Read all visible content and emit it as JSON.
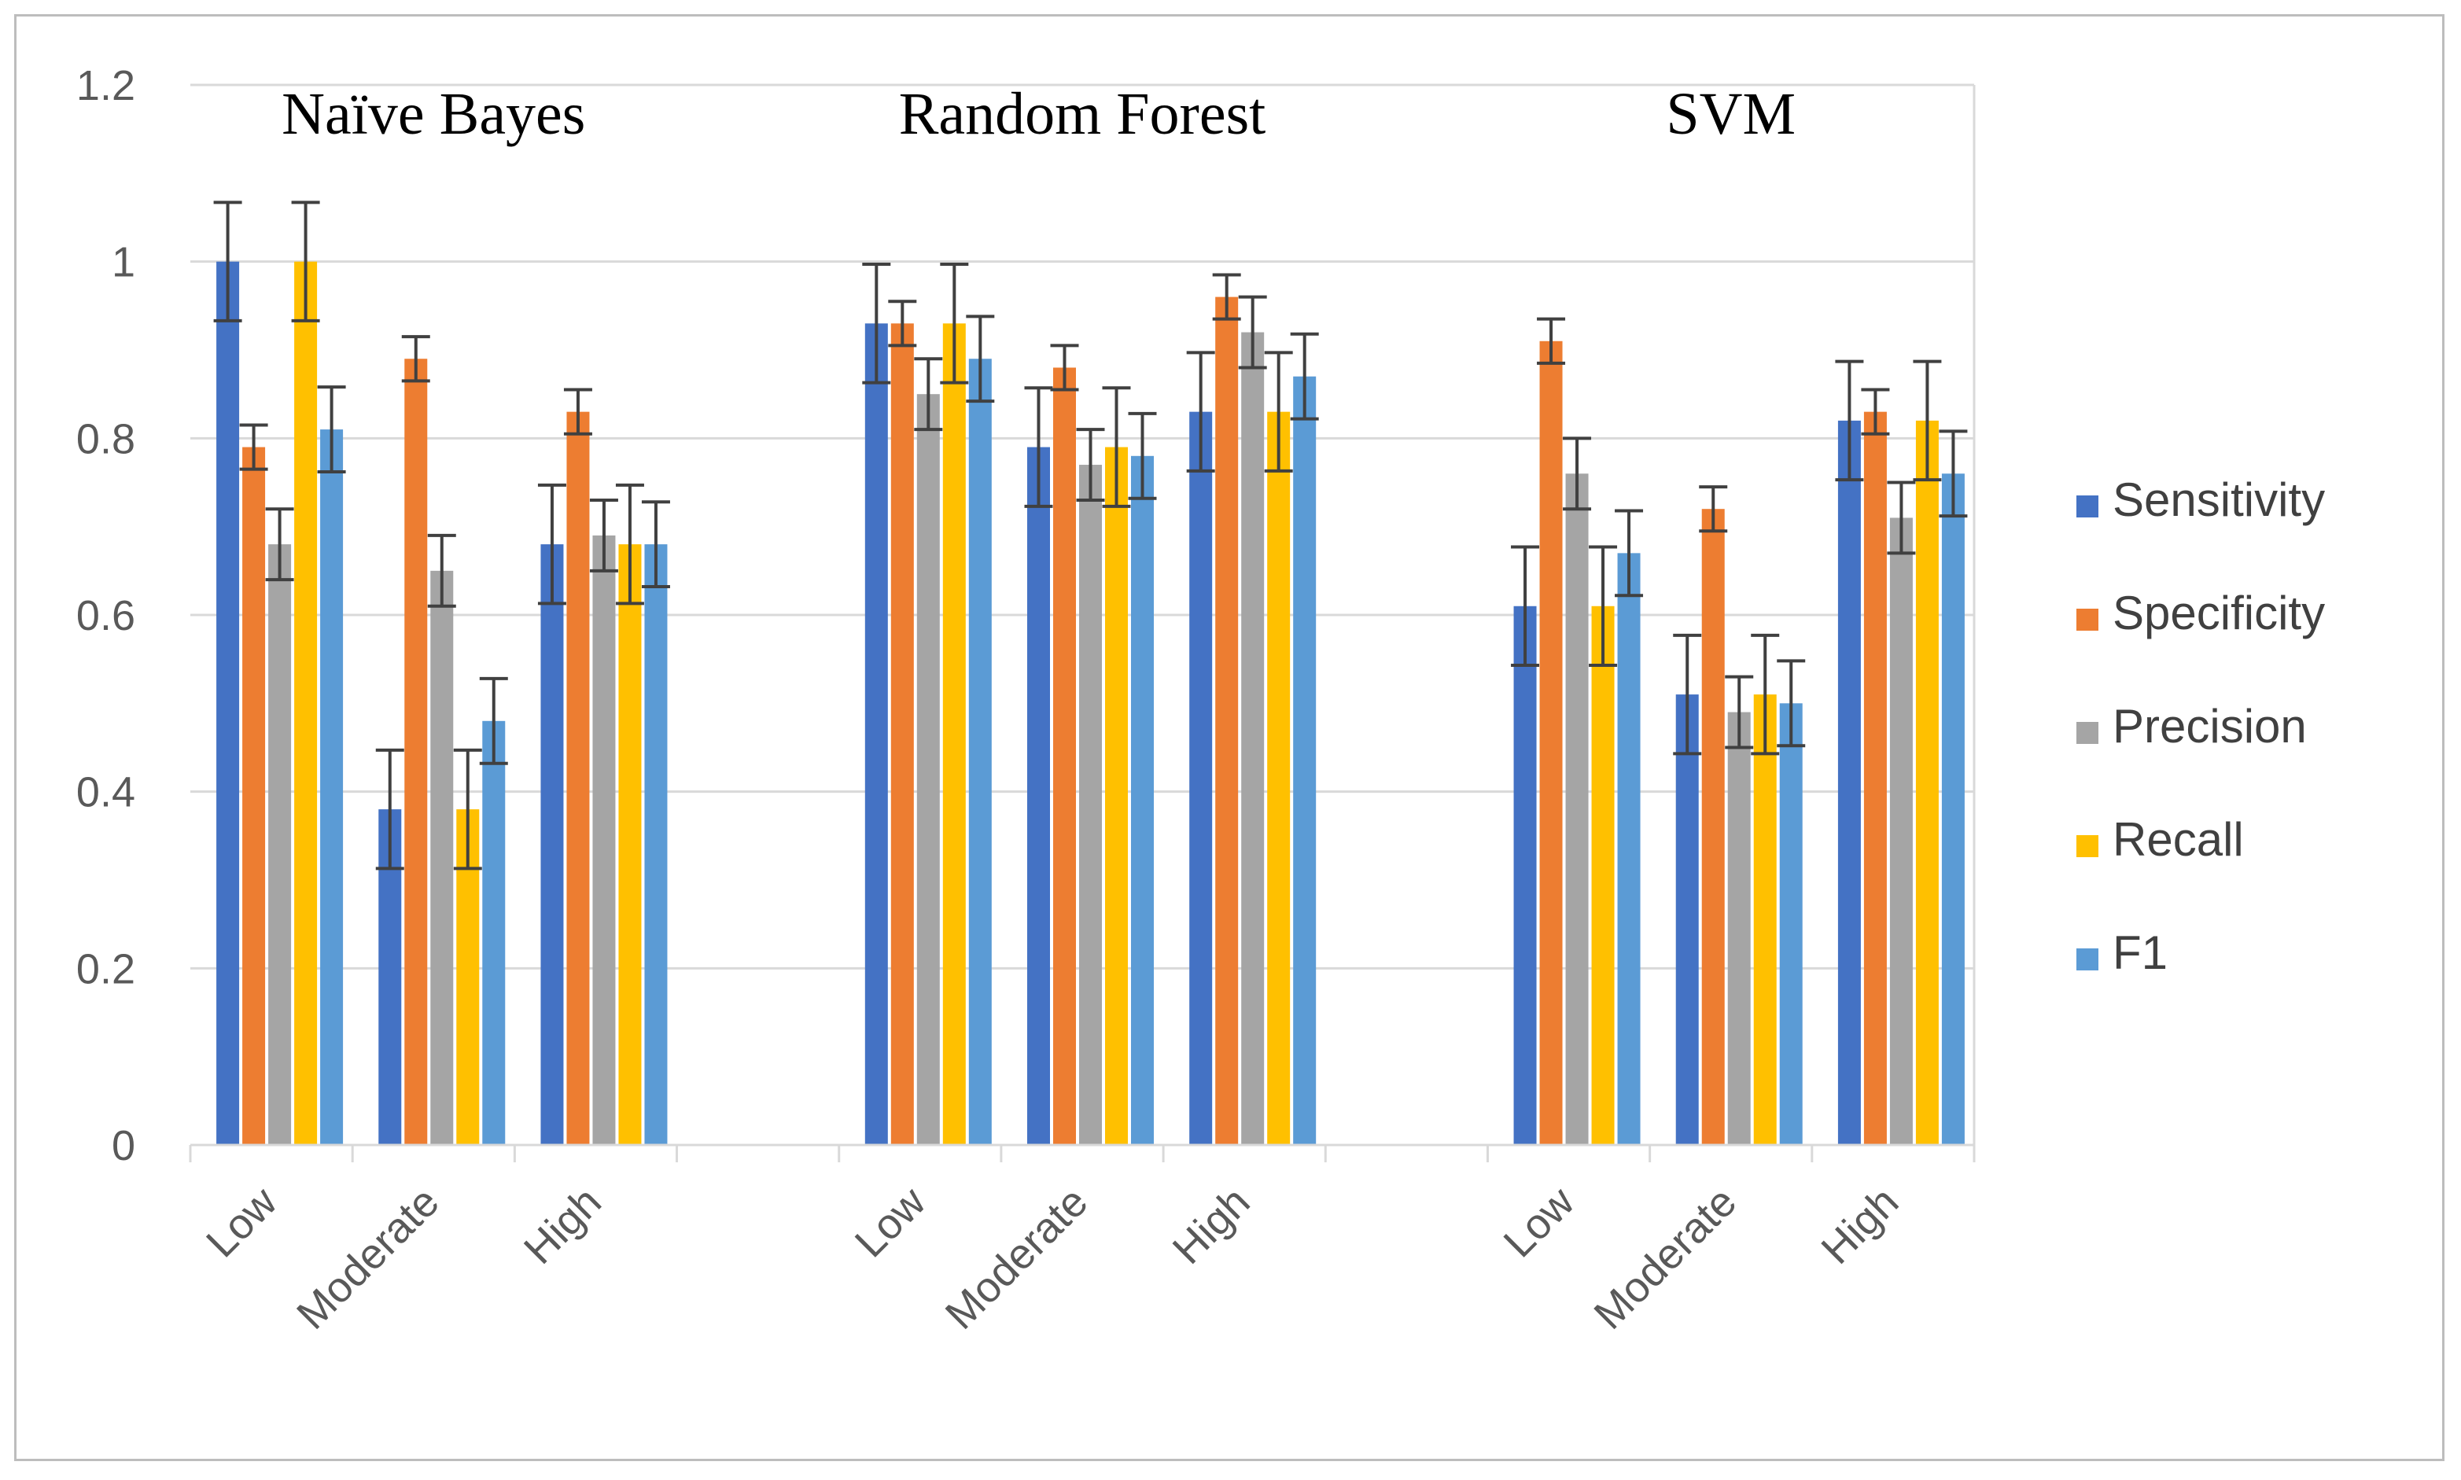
{
  "chart_data": {
    "type": "bar",
    "y_axis": {
      "ylim": [
        0,
        1.2
      ],
      "ticks": [
        0,
        0.2,
        0.4,
        0.6,
        0.8,
        1,
        1.2
      ],
      "tick_labels": [
        "0",
        "0.2",
        "0.4",
        "0.6",
        "0.8",
        "1",
        "1.2"
      ],
      "grid": true
    },
    "legend_position": "right",
    "series": [
      {
        "name": "Sensitivity",
        "color": "#4472C4"
      },
      {
        "name": "Specificity",
        "color": "#ED7D31"
      },
      {
        "name": "Precision",
        "color": "#A5A5A5"
      },
      {
        "name": "Recall",
        "color": "#FFC000"
      },
      {
        "name": "F1",
        "color": "#5B9BD5"
      }
    ],
    "groups": [
      {
        "title": "Naïve Bayes",
        "categories": [
          {
            "label": "Low",
            "values": [
              1.0,
              0.79,
              0.68,
              1.0,
              0.81
            ],
            "errors": [
              0.067,
              0.025,
              0.04,
              0.067,
              0.048
            ]
          },
          {
            "label": "Moderate",
            "values": [
              0.38,
              0.89,
              0.65,
              0.38,
              0.48
            ],
            "errors": [
              0.067,
              0.025,
              0.04,
              0.067,
              0.048
            ]
          },
          {
            "label": "High",
            "values": [
              0.68,
              0.83,
              0.69,
              0.68,
              0.68
            ],
            "errors": [
              0.067,
              0.025,
              0.04,
              0.067,
              0.048
            ]
          }
        ]
      },
      {
        "title": "Random Forest",
        "categories": [
          {
            "label": "Low",
            "values": [
              0.93,
              0.93,
              0.85,
              0.93,
              0.89
            ],
            "errors": [
              0.067,
              0.025,
              0.04,
              0.067,
              0.048
            ]
          },
          {
            "label": "Moderate",
            "values": [
              0.79,
              0.88,
              0.77,
              0.79,
              0.78
            ],
            "errors": [
              0.067,
              0.025,
              0.04,
              0.067,
              0.048
            ]
          },
          {
            "label": "High",
            "values": [
              0.83,
              0.96,
              0.92,
              0.83,
              0.87
            ],
            "errors": [
              0.067,
              0.025,
              0.04,
              0.067,
              0.048
            ]
          }
        ]
      },
      {
        "title": "SVM",
        "categories": [
          {
            "label": "Low",
            "values": [
              0.61,
              0.91,
              0.76,
              0.61,
              0.67
            ],
            "errors": [
              0.067,
              0.025,
              0.04,
              0.067,
              0.048
            ]
          },
          {
            "label": "Moderate",
            "values": [
              0.51,
              0.72,
              0.49,
              0.51,
              0.5
            ],
            "errors": [
              0.067,
              0.025,
              0.04,
              0.067,
              0.048
            ]
          },
          {
            "label": "High",
            "values": [
              0.82,
              0.83,
              0.71,
              0.82,
              0.76
            ],
            "errors": [
              0.067,
              0.025,
              0.04,
              0.067,
              0.048
            ]
          }
        ]
      }
    ]
  }
}
